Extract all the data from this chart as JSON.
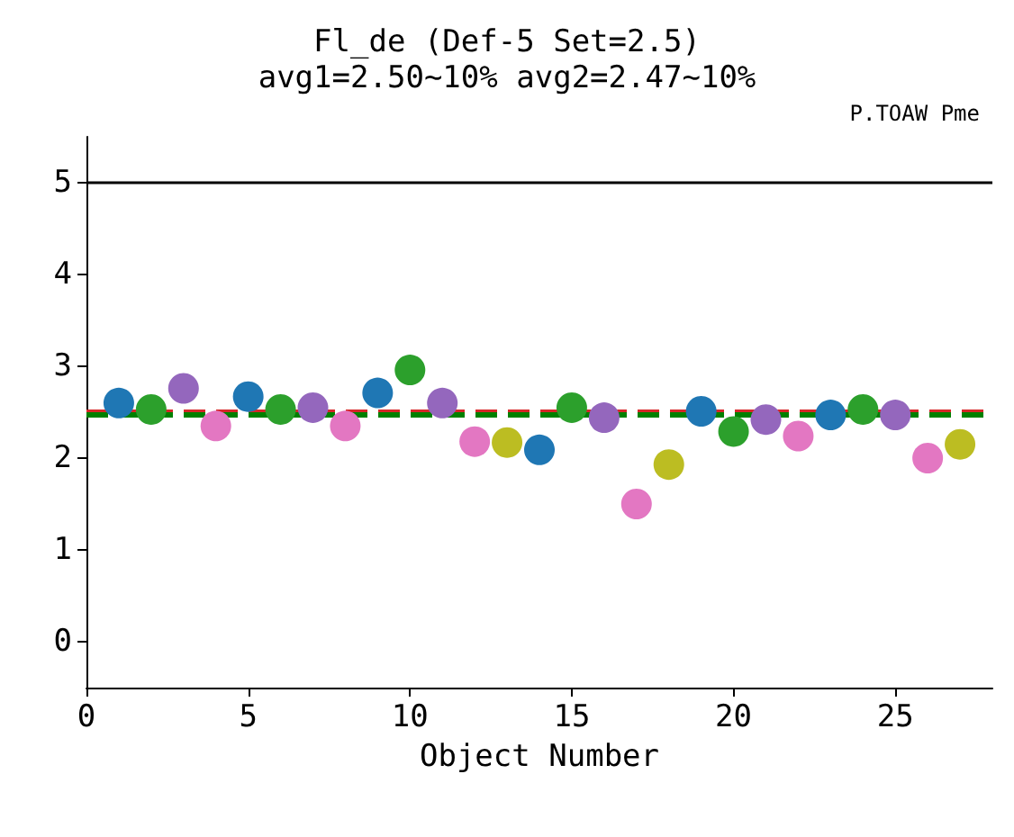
{
  "chart_data": {
    "type": "scatter",
    "title": "Fl_de (Def-5 Set=2.5)",
    "subtitle": "avg1=2.50~10% avg2=2.47~10%",
    "annotations": [
      "P.TOAW Pme"
    ],
    "xlabel": "Object Number",
    "x": [
      1,
      2,
      3,
      4,
      5,
      6,
      7,
      8,
      9,
      10,
      11,
      12,
      13,
      14,
      15,
      16,
      17,
      18,
      19,
      20,
      21,
      22,
      23,
      24,
      25,
      26,
      27
    ],
    "values": [
      2.6,
      2.53,
      2.76,
      2.35,
      2.67,
      2.53,
      2.55,
      2.35,
      2.71,
      2.96,
      2.6,
      2.18,
      2.17,
      2.09,
      2.55,
      2.44,
      1.5,
      1.93,
      2.51,
      2.29,
      2.42,
      2.24,
      2.47,
      2.53,
      2.47,
      2.0,
      2.15
    ],
    "colors": [
      "#1f77b4",
      "#2ca02c",
      "#9467bd",
      "#e377c2",
      "#1f77b4",
      "#2ca02c",
      "#9467bd",
      "#e377c2",
      "#1f77b4",
      "#2ca02c",
      "#9467bd",
      "#e377c2",
      "#bcbd22",
      "#1f77b4",
      "#2ca02c",
      "#9467bd",
      "#e377c2",
      "#bcbd22",
      "#1f77b4",
      "#2ca02c",
      "#9467bd",
      "#e377c2",
      "#1f77b4",
      "#2ca02c",
      "#9467bd",
      "#e377c2",
      "#bcbd22"
    ],
    "xlim": [
      0,
      28
    ],
    "ylim": [
      -0.5,
      5.5
    ],
    "xticks": [
      0,
      5,
      10,
      15,
      20,
      25
    ],
    "yticks": [
      0,
      1,
      2,
      3,
      4,
      5
    ],
    "marker": "circle",
    "grid": false,
    "ref_lines": [
      {
        "axis": "y",
        "value": 5,
        "color": "#000000",
        "line_style": "solid"
      },
      {
        "axis": "y",
        "value": 2.5,
        "color": "#d62728",
        "line_style": "dashed"
      },
      {
        "axis": "y",
        "value": 2.47,
        "color": "#008000",
        "line_style": "dashed"
      }
    ]
  }
}
